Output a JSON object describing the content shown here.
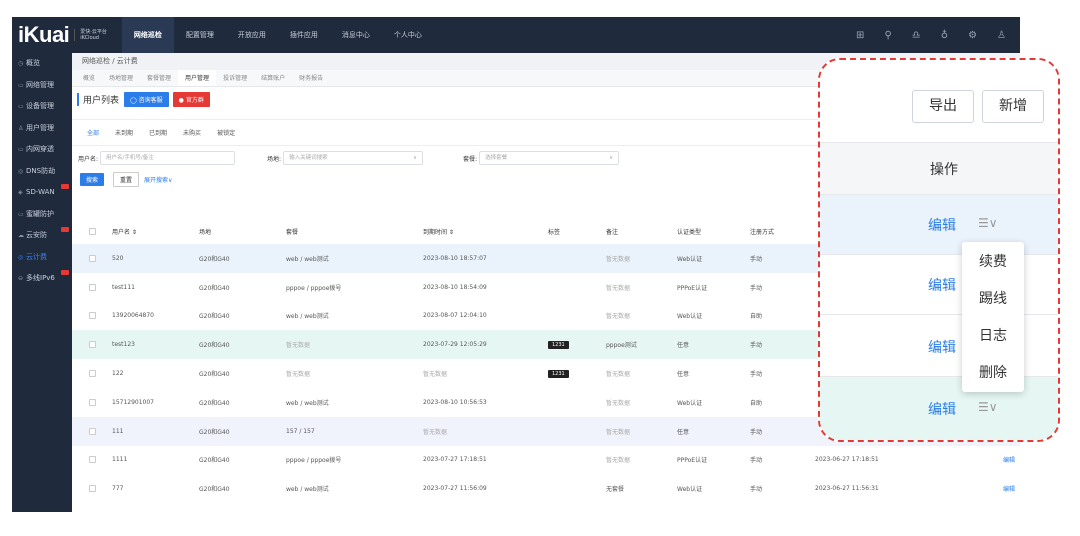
{
  "topbar": {
    "logo": "iKuai",
    "logo_sub1": "爱快·云平台",
    "logo_sub2": "iKCloud",
    "nav": [
      "网络巡检",
      "配置管理",
      "开放应用",
      "插件应用",
      "消息中心",
      "个人中心"
    ],
    "active_nav": "网络巡检",
    "icons": [
      "grid-icon",
      "link-icon",
      "headset-icon",
      "bulb-icon",
      "settings-icon",
      "user-icon"
    ]
  },
  "sidebar": {
    "items": [
      {
        "icon": "◷",
        "label": "概览"
      },
      {
        "icon": "▭",
        "label": "网络管理"
      },
      {
        "icon": "▭",
        "label": "设备管理"
      },
      {
        "icon": "♙",
        "label": "用户管理"
      },
      {
        "icon": "▭",
        "label": "内网穿透"
      },
      {
        "icon": "◎",
        "label": "DNS防劫"
      },
      {
        "icon": "◈",
        "label": "SD-WAN"
      },
      {
        "icon": "▭",
        "label": "蜜罐防护"
      },
      {
        "icon": "☁",
        "label": "云安防"
      },
      {
        "icon": "◎",
        "label": "云计费"
      },
      {
        "icon": "⊖",
        "label": "多线IPv6"
      }
    ],
    "active": "云计费"
  },
  "breadcrumb": "网络巡检 / 云计费",
  "subtabs": [
    "概览",
    "场地管理",
    "套餐管理",
    "用户管理",
    "投诉管理",
    "结算账户",
    "财务报告"
  ],
  "active_subtab": "用户管理",
  "list": {
    "title": "用户列表",
    "btn_consult": "咨询客服",
    "btn_official": "官方群"
  },
  "filter_tabs": [
    "全部",
    "未到期",
    "已到期",
    "未购买",
    "被锁定"
  ],
  "active_filter_tab": "全部",
  "filters": {
    "username_label": "用户名:",
    "username_placeholder": "用户名/手机号/备注",
    "venue_label": "场地:",
    "venue_placeholder": "输入关键词搜索",
    "package_label": "套餐:",
    "package_placeholder": "选择套餐",
    "search": "搜索",
    "reset": "重置",
    "expand": "展开搜索∨"
  },
  "table": {
    "columns": [
      "用户名 ⇕",
      "场地",
      "套餐",
      "到期时间 ⇕",
      "标签",
      "备注",
      "认证类型",
      "注册方式"
    ],
    "rows": [
      {
        "user": "520",
        "venue": "G20和G40",
        "pkg": "web / web测试",
        "expire": "2023-08-10 18:57:07",
        "tag": "",
        "note": "暂无数据",
        "auth": "Web认证",
        "reg": "手动",
        "created": "",
        "edit": "",
        "more": ""
      },
      {
        "user": "test111",
        "venue": "G20和G40",
        "pkg": "pppoe / pppoe拨号",
        "expire": "2023-08-10 18:54:09",
        "tag": "",
        "note": "暂无数据",
        "auth": "PPPoE认证",
        "reg": "手动",
        "created": "",
        "edit": "",
        "more": ""
      },
      {
        "user": "13920064870",
        "venue": "G20和G40",
        "pkg": "web / web测试",
        "expire": "2023-08-07 12:04:10",
        "tag": "",
        "note": "暂无数据",
        "auth": "Web认证",
        "reg": "自助",
        "created": "",
        "edit": "",
        "more": ""
      },
      {
        "user": "test123",
        "venue": "G20和G40",
        "pkg": "暂无数据",
        "expire": "2023-07-29 12:05:29",
        "tag": "1231",
        "note": "pppoe测试",
        "auth": "任意",
        "reg": "手动",
        "created": "",
        "edit": "",
        "more": ""
      },
      {
        "user": "122",
        "venue": "G20和G40",
        "pkg": "暂无数据",
        "expire": "暂无数据",
        "tag": "1231",
        "note": "暂无数据",
        "auth": "任意",
        "reg": "手动",
        "created": "",
        "edit": "",
        "more": ""
      },
      {
        "user": "15712901007",
        "venue": "G20和G40",
        "pkg": "web / web测试",
        "expire": "2023-08-10 10:56:53",
        "tag": "",
        "note": "暂无数据",
        "auth": "Web认证",
        "reg": "自助",
        "created": "",
        "edit": "",
        "more": ""
      },
      {
        "user": "111",
        "venue": "G20和G40",
        "pkg": "157 / 157",
        "expire": "暂无数据",
        "tag": "",
        "note": "暂无数据",
        "auth": "任意",
        "reg": "手动",
        "created": "",
        "edit": "",
        "more": ""
      },
      {
        "user": "1111",
        "venue": "G20和G40",
        "pkg": "pppoe / pppoe拨号",
        "expire": "2023-07-27 17:18:51",
        "tag": "",
        "note": "暂无数据",
        "auth": "PPPoE认证",
        "reg": "手动",
        "created": "2023-06-27 17:18:51",
        "edit": "编辑",
        "more": "☰∨"
      },
      {
        "user": "777",
        "venue": "G20和G40",
        "pkg": "web / web测试",
        "expire": "2023-07-27 11:56:09",
        "tag": "",
        "note": "无套餐",
        "auth": "Web认证",
        "reg": "手动",
        "created": "2023-06-27 11:56:31",
        "edit": "编辑",
        "more": "☰∨"
      }
    ]
  },
  "callout": {
    "export": "导出",
    "add": "新增",
    "op_header": "操作",
    "edit": "编辑",
    "more": "☰∨",
    "menu": [
      "续费",
      "踢线",
      "日志",
      "删除"
    ]
  }
}
